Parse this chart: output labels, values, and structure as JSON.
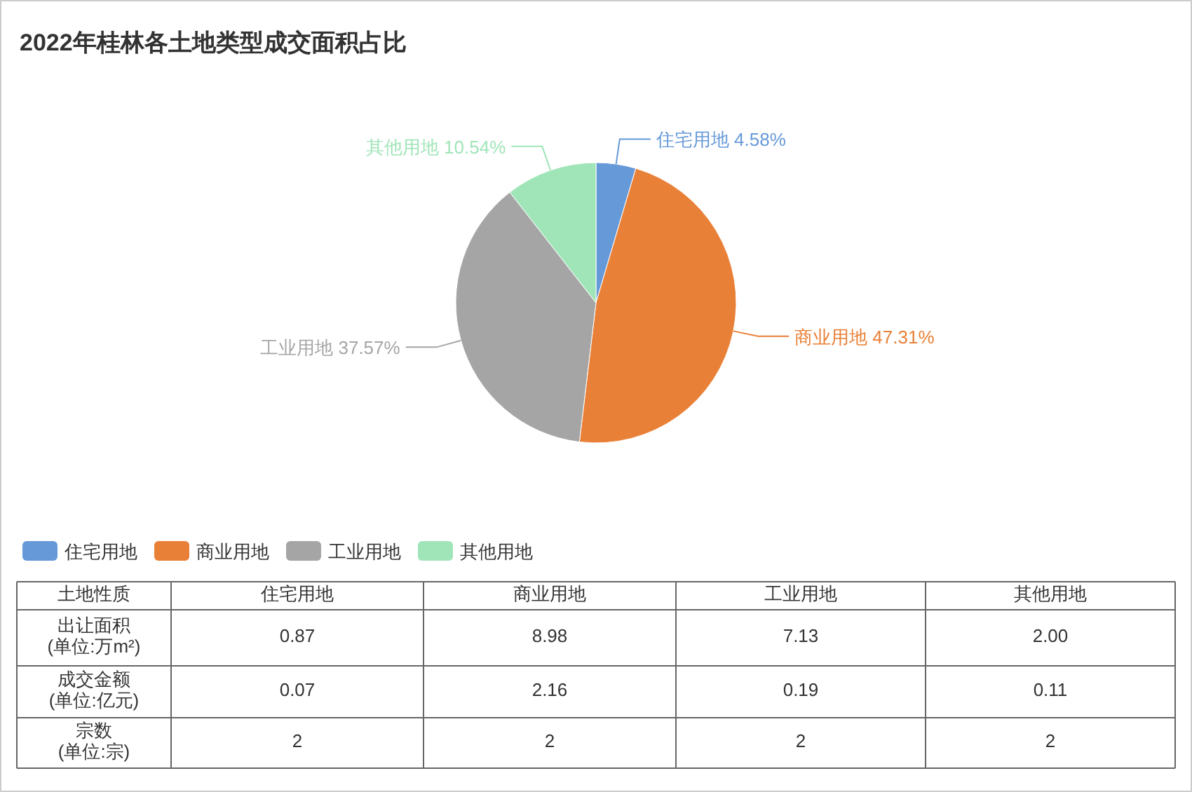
{
  "chart_data": [
    {
      "type": "pie",
      "title": "2022年桂林各土地类型成交面积占比",
      "categories": [
        "住宅用地",
        "商业用地",
        "工业用地",
        "其他用地"
      ],
      "values": [
        4.58,
        47.31,
        37.57,
        10.54
      ],
      "value_labels": [
        "4.58%",
        "47.31%",
        "37.57%",
        "10.54%"
      ],
      "colors": [
        "#6699d8",
        "#e98037",
        "#a5a5a5",
        "#a0e5b8"
      ],
      "legend": "bottom left"
    },
    {
      "type": "other",
      "ylabel": "土地性质",
      "categories": [
        "住宅用地",
        "商业用地",
        "工业用地",
        "其他用地"
      ],
      "y_categories": [
        "出让面积\n(单位:万m²)",
        "成交金额\n(单位:亿元)",
        "宗数\n(单位:宗)"
      ],
      "cell_labels": [
        [
          "0.87",
          "8.98",
          "7.13",
          "2.00"
        ],
        [
          "0.07",
          "2.16",
          "0.19",
          "0.11"
        ],
        [
          "2",
          "2",
          "2",
          "2"
        ]
      ]
    }
  ]
}
